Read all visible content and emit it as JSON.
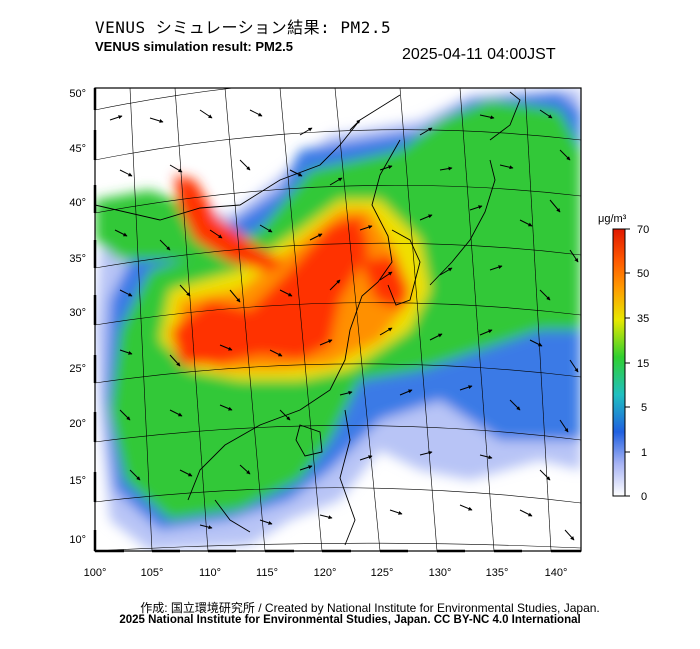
{
  "header": {
    "title_jp": "VENUS シミュレーション結果: PM2.5",
    "title_en": "VENUS simulation result: PM2.5",
    "timestamp": "2025-04-11 04:00JST"
  },
  "map": {
    "lat_ticks": [
      "50°",
      "45°",
      "40°",
      "35°",
      "30°",
      "25°",
      "20°",
      "15°",
      "10°"
    ],
    "lon_ticks": [
      "100°",
      "105°",
      "110°",
      "115°",
      "120°",
      "125°",
      "130°",
      "135°",
      "140°"
    ],
    "lat_values": [
      50,
      45,
      40,
      35,
      30,
      25,
      20,
      15,
      10
    ],
    "lon_values": [
      100,
      105,
      110,
      115,
      120,
      125,
      130,
      135,
      140
    ]
  },
  "colorbar": {
    "unit": "μg/m³",
    "labels": [
      "70",
      "50",
      "35",
      "15",
      "5",
      "1",
      "0"
    ],
    "colors": [
      "#ff2000",
      "#ff8c00",
      "#e8e800",
      "#30d030",
      "#20b0d0",
      "#2050e0",
      "#b8c0f8",
      "#ffffff"
    ]
  },
  "footer": {
    "credit": "作成: 国立環境研究所 / Created by National Institute for Environmental Studies, Japan.",
    "copyright": "2025 National Institute for Environmental Studies, Japan. CC BY-NC 4.0 International"
  }
}
